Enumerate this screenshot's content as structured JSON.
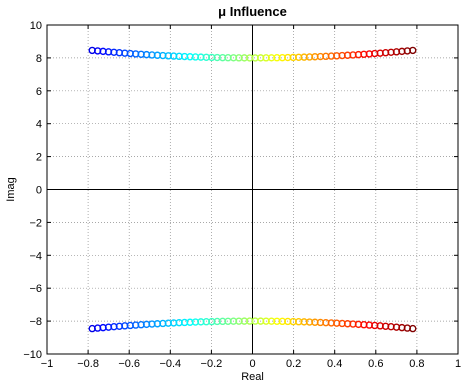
{
  "chart_data": {
    "type": "scatter",
    "title": "μ Influence",
    "xlabel": "Real",
    "ylabel": "Imag",
    "xlim": [
      -1,
      1
    ],
    "ylim": [
      -10,
      10
    ],
    "grid": true,
    "grid_style": "dotted",
    "colormap": "jet",
    "x_ticks": [
      -1,
      -0.8,
      -0.6,
      -0.4,
      -0.2,
      0,
      0.2,
      0.4,
      0.6,
      0.8,
      1
    ],
    "x_tick_labels": [
      "−1",
      "−0.8",
      "−0.6",
      "−0.4",
      "−0.2",
      "0",
      "0.2",
      "0.4",
      "0.6",
      "0.8",
      "1"
    ],
    "y_ticks": [
      -10,
      -8,
      -6,
      -4,
      -2,
      0,
      2,
      4,
      6,
      8,
      10
    ],
    "y_tick_labels": [
      "−10",
      "−8",
      "−6",
      "−4",
      "−2",
      "0",
      "2",
      "4",
      "6",
      "8",
      "10"
    ],
    "zero_lines": true,
    "series": [
      {
        "marker": "open-circle",
        "points_x_range": [
          -0.78,
          0.78
        ],
        "count": 60,
        "curve": "y = 8.0 + 0.75 * x^2",
        "x": [
          -0.78,
          -0.7535,
          -0.7271,
          -0.7006,
          -0.6742,
          -0.6478,
          -0.6213,
          -0.5949,
          -0.5684,
          -0.542,
          -0.5156,
          -0.4891,
          -0.4627,
          -0.4362,
          -0.4098,
          -0.3834,
          -0.3569,
          -0.3305,
          -0.304,
          -0.2776,
          -0.2512,
          -0.2247,
          -0.1983,
          -0.1718,
          -0.1454,
          -0.119,
          -0.0925,
          -0.0661,
          -0.0397,
          -0.0132,
          0.0132,
          0.0397,
          0.0661,
          0.0925,
          0.119,
          0.1454,
          0.1718,
          0.1983,
          0.2247,
          0.2512,
          0.2776,
          0.304,
          0.3305,
          0.3569,
          0.3834,
          0.4098,
          0.4362,
          0.4627,
          0.4891,
          0.5156,
          0.542,
          0.5684,
          0.5949,
          0.6213,
          0.6478,
          0.6742,
          0.7006,
          0.7271,
          0.7535,
          0.78
        ],
        "y_sign": 1
      },
      {
        "marker": "open-circle",
        "points_x_range": [
          -0.78,
          0.78
        ],
        "count": 60,
        "curve": "y = -(8.0 + 0.75 * x^2)",
        "x": [
          -0.78,
          -0.7535,
          -0.7271,
          -0.7006,
          -0.6742,
          -0.6478,
          -0.6213,
          -0.5949,
          -0.5684,
          -0.542,
          -0.5156,
          -0.4891,
          -0.4627,
          -0.4362,
          -0.4098,
          -0.3834,
          -0.3569,
          -0.3305,
          -0.304,
          -0.2776,
          -0.2512,
          -0.2247,
          -0.1983,
          -0.1718,
          -0.1454,
          -0.119,
          -0.0925,
          -0.0661,
          -0.0397,
          -0.0132,
          0.0132,
          0.0397,
          0.0661,
          0.0925,
          0.119,
          0.1454,
          0.1718,
          0.1983,
          0.2247,
          0.2512,
          0.2776,
          0.304,
          0.3305,
          0.3569,
          0.3834,
          0.4098,
          0.4362,
          0.4627,
          0.4891,
          0.5156,
          0.542,
          0.5684,
          0.5949,
          0.6213,
          0.6478,
          0.6742,
          0.7006,
          0.7271,
          0.7535,
          0.78
        ],
        "y_sign": -1
      }
    ]
  }
}
